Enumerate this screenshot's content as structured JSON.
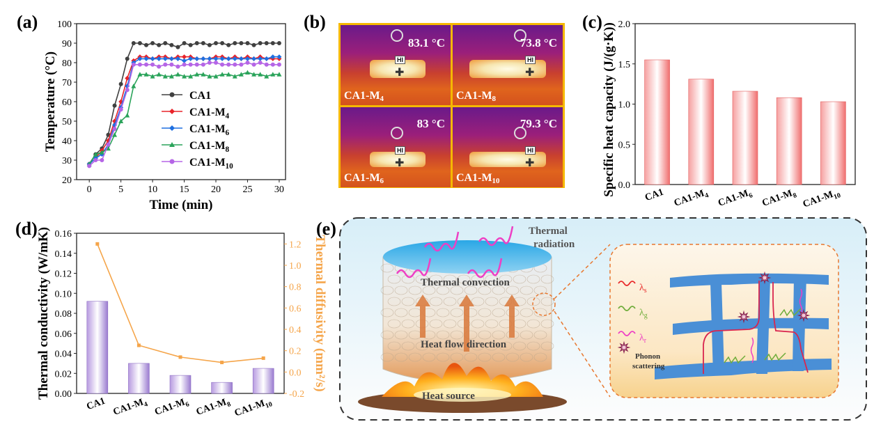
{
  "panels": {
    "a": "(a)",
    "b": "(b)",
    "c": "(c)",
    "d": "(d)",
    "e": "(e)"
  },
  "colors": {
    "CA1": "#404040",
    "CA1-M4": "#e8232a",
    "CA1-M6": "#1e6fe0",
    "CA1-M8": "#2aa35a",
    "CA1-M10": "#b565e6",
    "bar_red": "#f27d7d",
    "bar_purple": "#a789d6",
    "diffusivity": "#f5a54a",
    "thermo_frame": "#f5b800"
  },
  "chart_data": [
    {
      "type": "line",
      "panel": "(a)",
      "xlabel": "Time (min)",
      "ylabel": "Temperature (°C)",
      "xlim": [
        -2,
        31
      ],
      "ylim": [
        20,
        100
      ],
      "xticks": [
        "0",
        "5",
        "10",
        "15",
        "20",
        "25",
        "30"
      ],
      "yticks": [
        "20",
        "30",
        "40",
        "50",
        "60",
        "70",
        "80",
        "90",
        "100"
      ],
      "x": [
        0,
        1,
        2,
        3,
        4,
        5,
        6,
        7,
        8,
        9,
        10,
        11,
        12,
        13,
        14,
        15,
        16,
        17,
        18,
        19,
        20,
        21,
        22,
        23,
        24,
        25,
        26,
        27,
        28,
        29,
        30
      ],
      "series": [
        {
          "name": "CA1",
          "sub": "",
          "marker": "circle",
          "values": [
            28,
            33,
            36,
            43,
            58,
            69,
            82,
            90,
            90,
            89,
            90,
            89,
            90,
            89,
            88,
            90,
            89,
            90,
            90,
            89,
            90,
            90,
            89,
            90,
            90,
            90,
            89,
            90,
            90,
            90,
            90
          ]
        },
        {
          "name": "CA1-M",
          "sub": "4",
          "marker": "diamond",
          "values": [
            28,
            31,
            35,
            40,
            50,
            60,
            72,
            81,
            83,
            83,
            82,
            83,
            83,
            82,
            83,
            83,
            83,
            82,
            82,
            82,
            83,
            83,
            82,
            83,
            82,
            83,
            82,
            83,
            82,
            82,
            82
          ]
        },
        {
          "name": "CA1-M",
          "sub": "6",
          "marker": "diamond",
          "values": [
            28,
            31,
            33,
            38,
            48,
            57,
            68,
            80,
            82,
            82,
            82,
            82,
            82,
            82,
            82,
            81,
            82,
            82,
            82,
            82,
            82,
            82,
            82,
            82,
            82,
            82,
            82,
            82,
            82,
            83,
            83
          ]
        },
        {
          "name": "CA1-M",
          "sub": "8",
          "marker": "triangle",
          "values": [
            28,
            33,
            34,
            36,
            43,
            50,
            53,
            68,
            74,
            74,
            73,
            74,
            73,
            73,
            74,
            73,
            73,
            74,
            74,
            73,
            73,
            74,
            74,
            73,
            74,
            75,
            74,
            74,
            73,
            74,
            74
          ]
        },
        {
          "name": "CA1-M",
          "sub": "10",
          "marker": "circle",
          "values": [
            27,
            30,
            30,
            38,
            46,
            56,
            66,
            79,
            79,
            79,
            79,
            78,
            79,
            79,
            78,
            79,
            79,
            79,
            79,
            80,
            80,
            79,
            79,
            79,
            79,
            80,
            79,
            80,
            79,
            79,
            79
          ]
        }
      ]
    },
    {
      "type": "bar",
      "panel": "(c)",
      "ylabel": "Specific heat capacity (J/(g·K))",
      "ylim": [
        0,
        2.0
      ],
      "yticks": [
        "0.0",
        "0.5",
        "1.0",
        "1.5",
        "2.0"
      ],
      "categories": [
        {
          "main": "CA1",
          "sub": ""
        },
        {
          "main": "CA1-M",
          "sub": "4"
        },
        {
          "main": "CA1-M",
          "sub": "6"
        },
        {
          "main": "CA1-M",
          "sub": "8"
        },
        {
          "main": "CA1-M",
          "sub": "10"
        }
      ],
      "values": [
        1.55,
        1.31,
        1.16,
        1.08,
        1.03
      ]
    },
    {
      "type": "bar",
      "panel": "(d)",
      "ylabel": "Thermal conductivity (W/mK)",
      "y2label": "Thermal diffusivity (mm²/s)",
      "ylim": [
        0,
        0.16
      ],
      "y2lim": [
        -0.2,
        1.3
      ],
      "yticks": [
        "0.00",
        "0.02",
        "0.04",
        "0.06",
        "0.08",
        "0.10",
        "0.12",
        "0.14",
        "0.16"
      ],
      "y2ticks": [
        "-0.2",
        "0.0",
        "0.2",
        "0.4",
        "0.6",
        "0.8",
        "1.0",
        "1.2"
      ],
      "categories": [
        {
          "main": "CA1",
          "sub": ""
        },
        {
          "main": "CA1-M",
          "sub": "4"
        },
        {
          "main": "CA1-M",
          "sub": "6"
        },
        {
          "main": "CA1-M",
          "sub": "8"
        },
        {
          "main": "CA1-M",
          "sub": "10"
        }
      ],
      "conductivity": [
        0.092,
        0.03,
        0.018,
        0.011,
        0.025
      ],
      "diffusivity": [
        1.2,
        0.25,
        0.14,
        0.09,
        0.13
      ]
    }
  ],
  "thermal_images": [
    {
      "temp": "83.1 °C",
      "label": "CA1-M",
      "sub": "4",
      "hi": "HI"
    },
    {
      "temp": "73.8 °C",
      "label": "CA1-M",
      "sub": "8",
      "hi": "HI"
    },
    {
      "temp": "83 °C",
      "label": "CA1-M",
      "sub": "6",
      "hi": "HI"
    },
    {
      "temp": "79.3 °C",
      "label": "CA1-M",
      "sub": "10",
      "hi": "HI"
    }
  ],
  "schematic": {
    "thermal_radiation": [
      "Thermal",
      "radiation"
    ],
    "thermal_convection": "Thermal convection",
    "heat_flow": "Heat flow direction",
    "heat_source": "Heat source",
    "lambda_s": "λ",
    "lambda_s_sub": "s",
    "lambda_g": "λ",
    "lambda_g_sub": "g",
    "lambda_r": "λ",
    "lambda_r_sub": "r",
    "phonon": [
      "Phonon",
      "scattering"
    ]
  }
}
